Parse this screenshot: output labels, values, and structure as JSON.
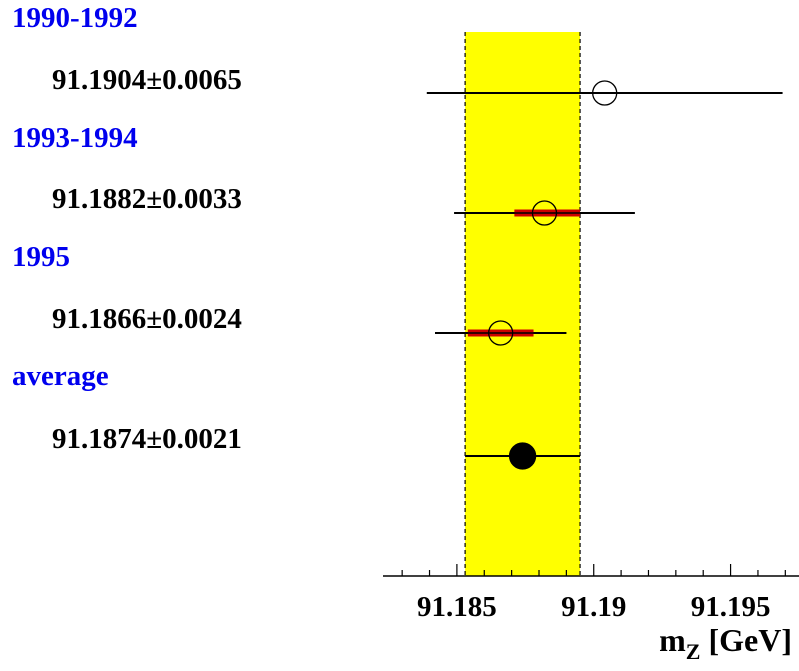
{
  "chart_data": {
    "type": "scatter",
    "xlabel": "m",
    "xlabel_sub": "Z",
    "xlabel_unit": " [GeV]",
    "xlim": [
      91.1823,
      91.1975
    ],
    "xticks": [
      "91.185",
      "91.19",
      "91.195"
    ],
    "band": {
      "low": 91.1853,
      "high": 91.1895,
      "color": "#ffff00"
    },
    "entries": [
      {
        "period": "1990-1992",
        "label": "91.1904±0.0065",
        "value": 91.1904,
        "err_low": 91.1839,
        "err_high": 91.1969,
        "inner": null,
        "marker": "open"
      },
      {
        "period": "1993-1994",
        "label": "91.1882±0.0033",
        "value": 91.1882,
        "err_low": 91.1849,
        "err_high": 91.1915,
        "inner": [
          91.1871,
          91.1895
        ],
        "marker": "open"
      },
      {
        "period": "1995",
        "label": "91.1866±0.0024",
        "value": 91.1866,
        "err_low": 91.1842,
        "err_high": 91.189,
        "inner": [
          91.1854,
          91.1878
        ],
        "marker": "open"
      },
      {
        "period": "average",
        "label": "91.1874±0.0021",
        "value": 91.1874,
        "err_low": 91.1853,
        "err_high": 91.1895,
        "inner": null,
        "marker": "filled"
      }
    ]
  }
}
